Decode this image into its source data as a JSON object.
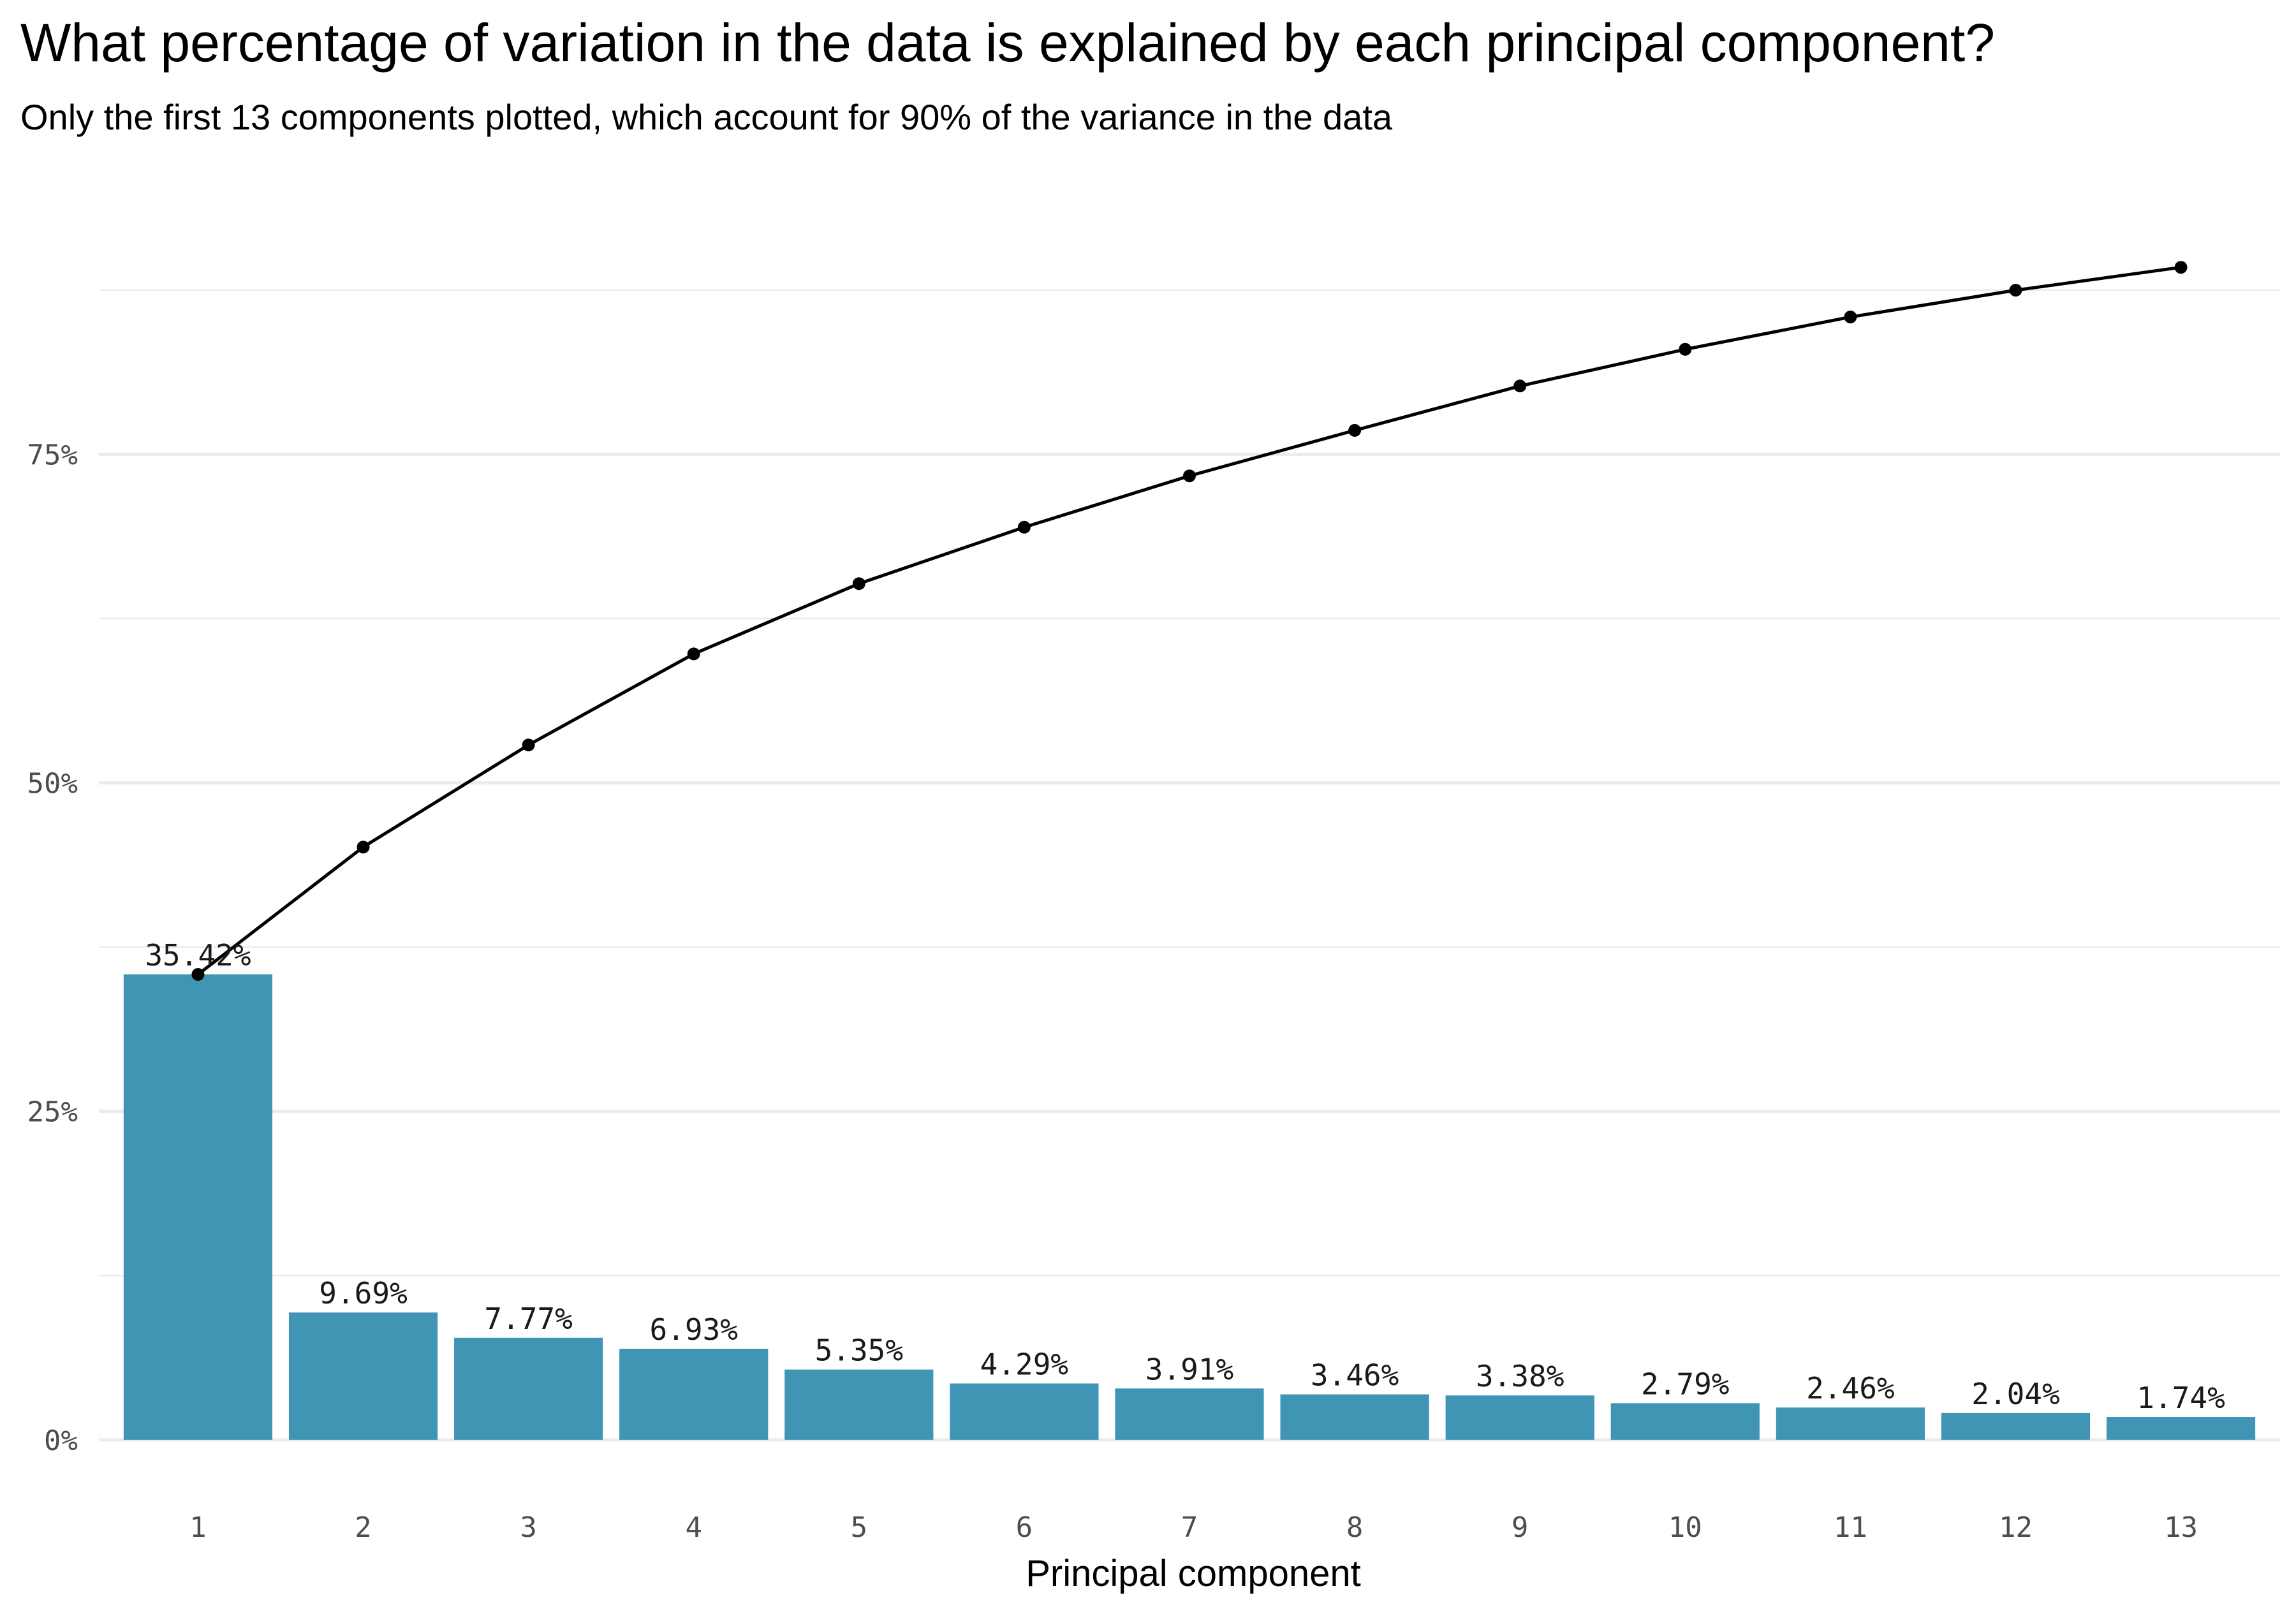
{
  "title": "What percentage of variation in the data is explained by each principal component?",
  "subtitle": "Only the first 13 components plotted, which account for 90% of the variance in the data",
  "colors": {
    "bar": "#4095b5",
    "line": "#000000",
    "grid": "#ebebeb",
    "tick_text": "#4d4d4d"
  },
  "chart_data": {
    "type": "bar",
    "title": "What percentage of variation in the data is explained by each principal component?",
    "subtitle": "Only the first 13 components plotted, which account for 90% of the variance in the data",
    "xlabel": "Principal component",
    "ylabel": "",
    "categories": [
      "1",
      "2",
      "3",
      "4",
      "5",
      "6",
      "7",
      "8",
      "9",
      "10",
      "11",
      "12",
      "13"
    ],
    "series": [
      {
        "type": "bar",
        "values": [
          35.42,
          9.69,
          7.77,
          6.93,
          5.35,
          4.29,
          3.91,
          3.46,
          3.38,
          2.79,
          2.46,
          2.04,
          1.74
        ],
        "labels": [
          "35.42%",
          "9.69%",
          "7.77%",
          "6.93%",
          "5.35%",
          "4.29%",
          "3.91%",
          "3.46%",
          "3.38%",
          "2.79%",
          "2.46%",
          "2.04%",
          "1.74%"
        ]
      },
      {
        "type": "line",
        "values": [
          35.42,
          45.11,
          52.88,
          59.81,
          65.16,
          69.45,
          73.36,
          76.82,
          80.2,
          82.99,
          85.45,
          87.49,
          89.23
        ]
      }
    ],
    "yticks": [
      0,
      25,
      50,
      75
    ],
    "ytick_labels": [
      "0%",
      "25%",
      "50%",
      "75%"
    ],
    "ylim": [
      -3.5,
      95.5
    ],
    "grid": true,
    "legend": "none"
  }
}
